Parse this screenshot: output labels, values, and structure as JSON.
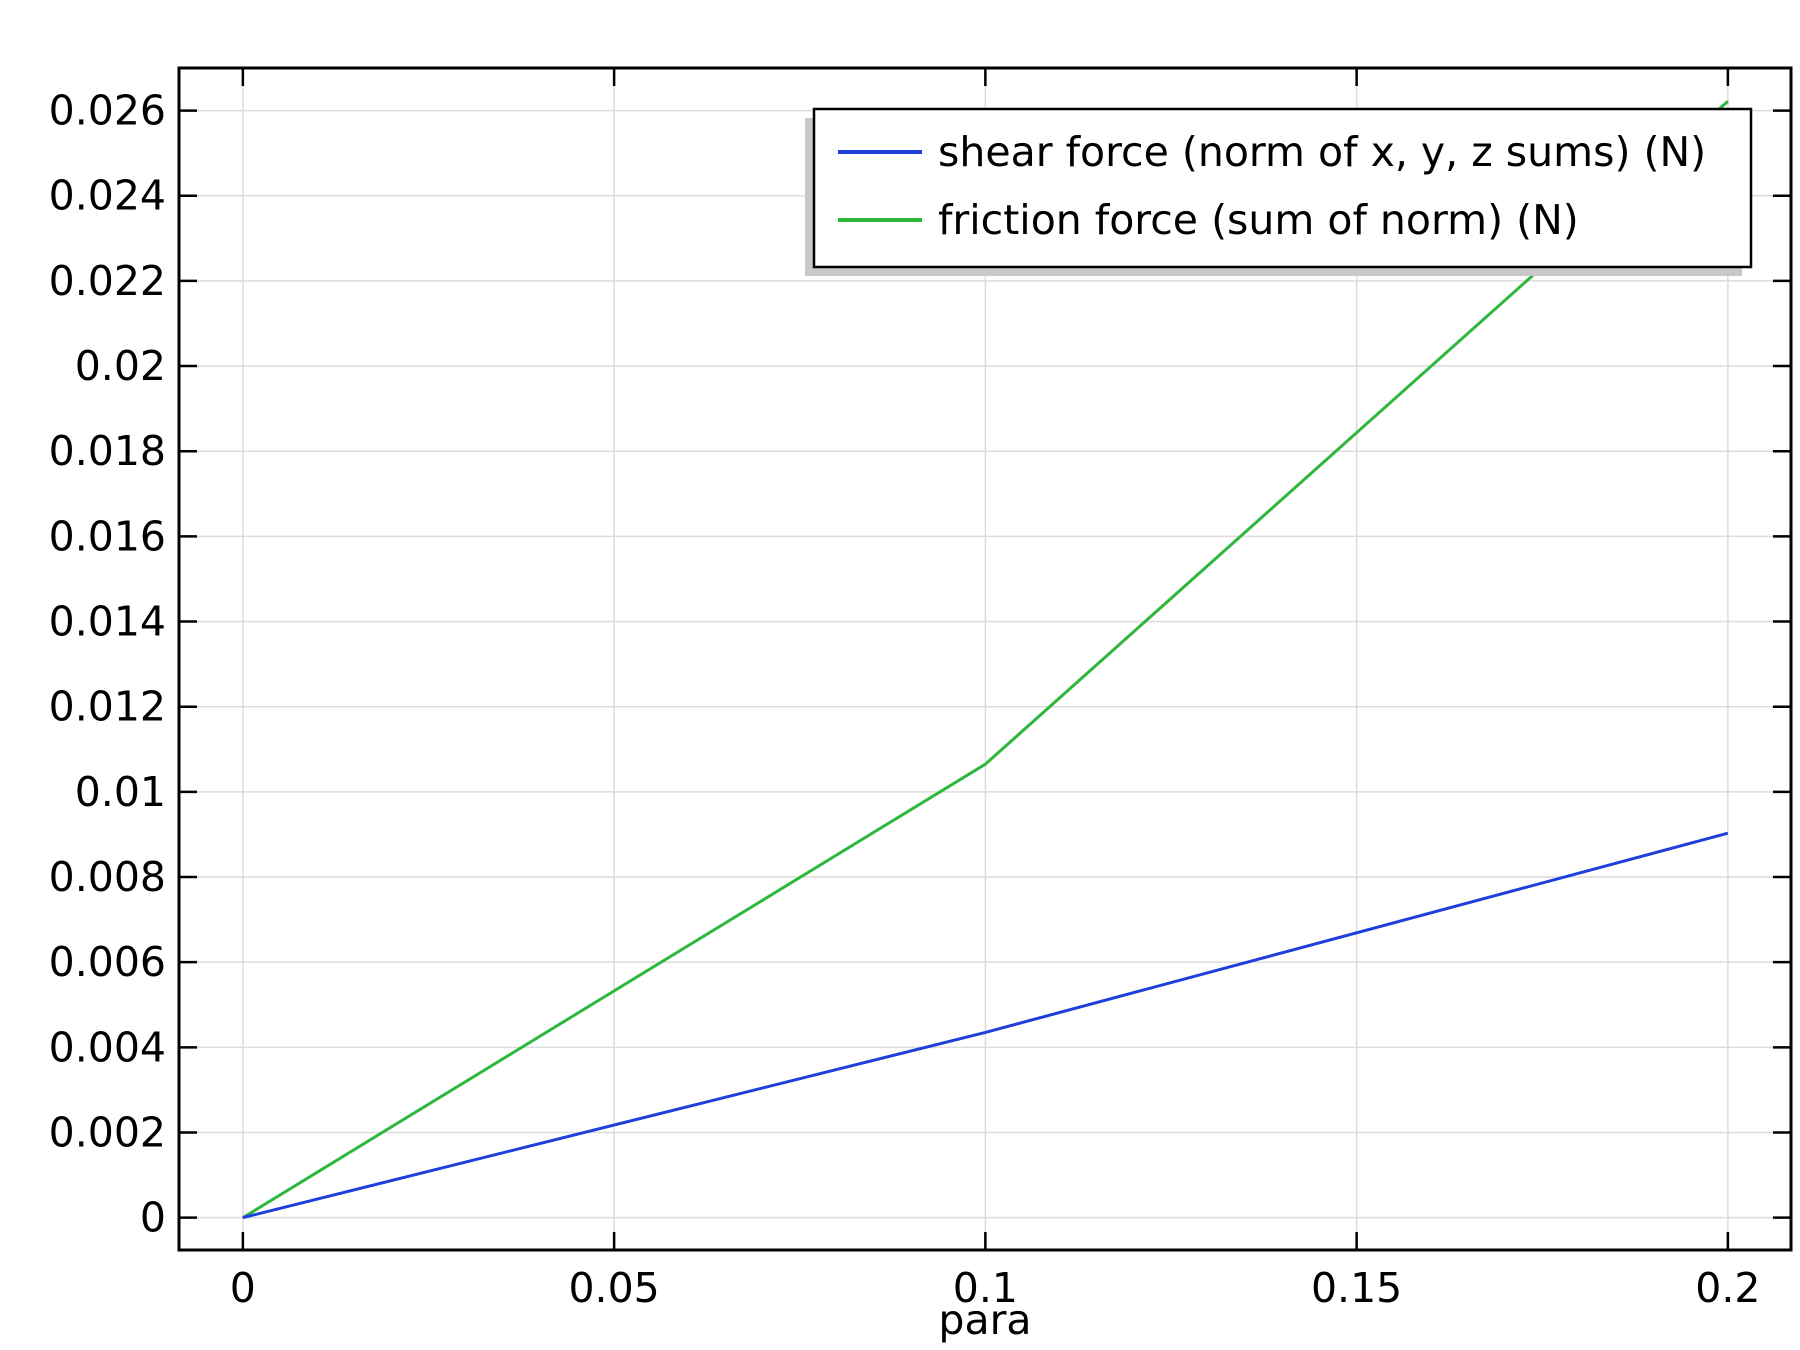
{
  "chart_data": {
    "type": "line",
    "title": "",
    "xlabel": "para",
    "ylabel": "",
    "xlim": [
      -0.0086,
      0.2085
    ],
    "ylim": [
      -0.00076,
      0.027
    ],
    "x_ticks": [
      0,
      0.05,
      0.1,
      0.15,
      0.2
    ],
    "x_tick_labels": [
      "0",
      "0.05",
      "0.1",
      "0.15",
      "0.2"
    ],
    "y_ticks": [
      0,
      0.002,
      0.004,
      0.006,
      0.008,
      0.01,
      0.012,
      0.014,
      0.016,
      0.018,
      0.02,
      0.022,
      0.024,
      0.026
    ],
    "y_tick_labels": [
      "0",
      "0.002",
      "0.004",
      "0.006",
      "0.008",
      "0.01",
      "0.012",
      "0.014",
      "0.016",
      "0.018",
      "0.02",
      "0.022",
      "0.024",
      "0.026"
    ],
    "grid": true,
    "legend_position": "top-right",
    "x": [
      0,
      0.1,
      0.2
    ],
    "series": [
      {
        "name": "shear force (norm of x, y, z sums) (N)",
        "color": "#1f3fdc",
        "values": [
          0,
          0.00435,
          0.00903
        ]
      },
      {
        "name": "friction force (sum of norm) (N)",
        "color": "#2db83d",
        "values": [
          0,
          0.01065,
          0.02622
        ]
      }
    ]
  }
}
